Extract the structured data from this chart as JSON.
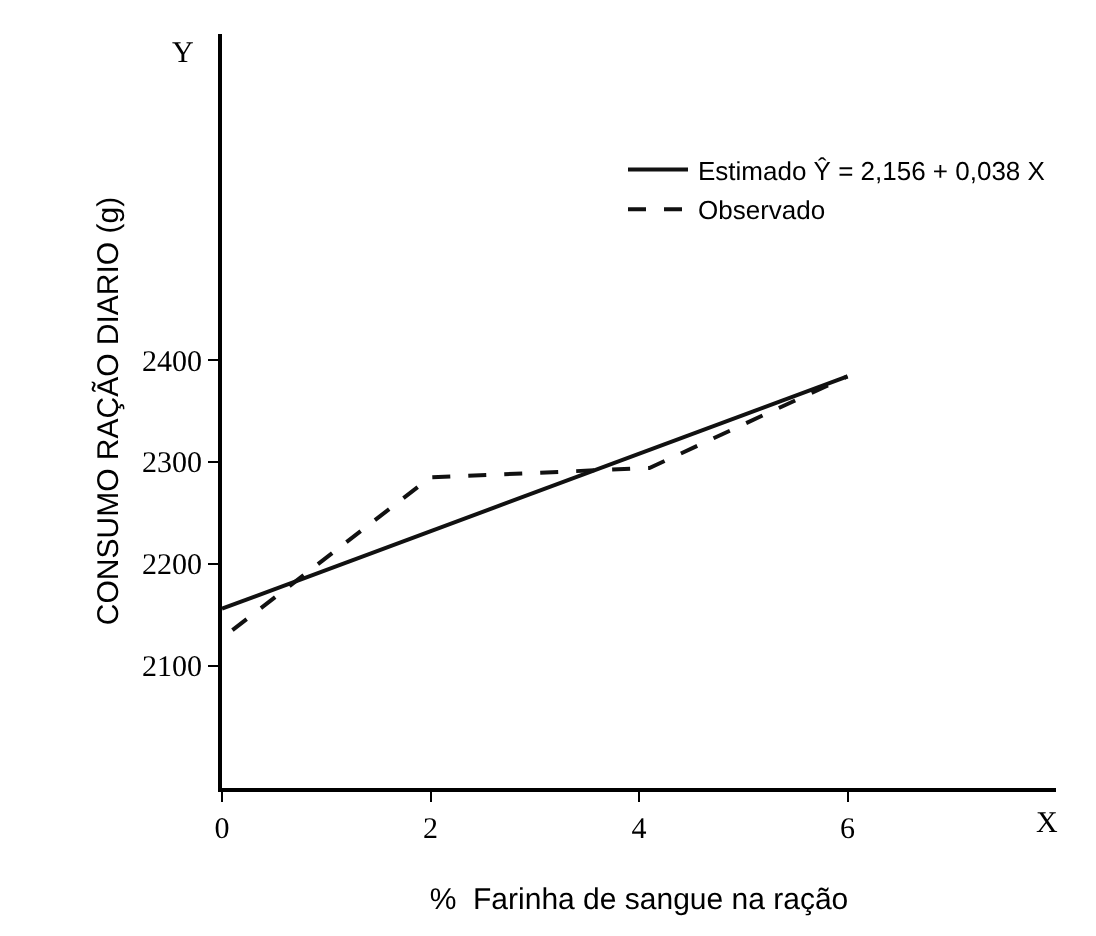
{
  "chart_data": {
    "type": "line",
    "xlabel": "%  Farinha de sangue na ração",
    "ylabel": "CONSUMO RAÇÃO DIARIO (g)",
    "series": [
      {
        "name": "Estimado Ŷ = 2,156 + 0,038 X",
        "color": "#111111",
        "x": [
          0,
          6
        ],
        "values": [
          2156,
          2384
        ],
        "line_style": "solid"
      },
      {
        "name": "Observado",
        "color": "#111111",
        "x": [
          0.1,
          2,
          4.1,
          5.3,
          6
        ],
        "values": [
          2135,
          2285,
          2294,
          2351,
          2384
        ],
        "line_style": "dashed"
      }
    ],
    "xlim": [
      0,
      8
    ],
    "xticks": [
      0,
      2,
      4,
      6
    ],
    "ylim": [
      1980,
      2720
    ],
    "yticks": [
      2100,
      2200,
      2300,
      2400
    ],
    "annotations": [
      "Y",
      "X"
    ],
    "legend": "top right"
  }
}
